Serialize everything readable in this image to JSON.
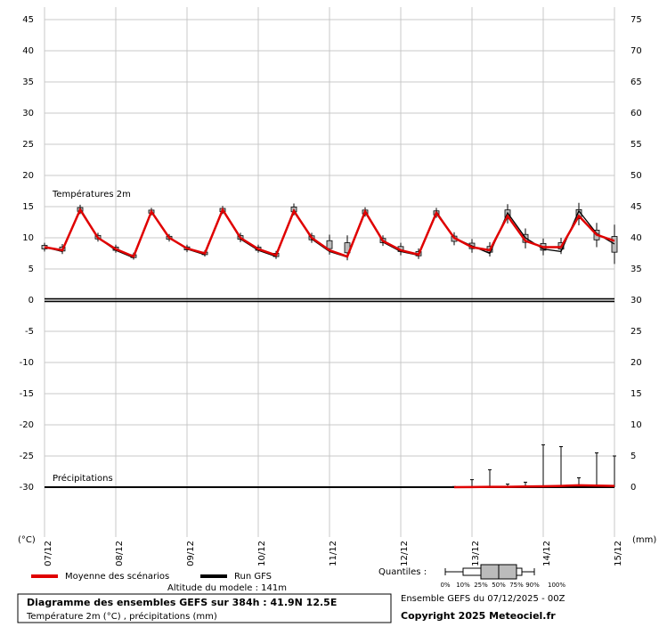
{
  "chart_data": {
    "type": "line",
    "title": "Diagramme des ensembles GEFS sur 384h : 41.9N 12.5E",
    "subtitle": "Température 2m (°C) , précipitations (mm)",
    "run_label": "Ensemble GEFS du 07/12/2025 - 00Z",
    "copyright": "Copyright 2025 Meteociel.fr",
    "altitude": "Altitude du modele : 141m",
    "ylabel": "(°C)",
    "y2label": "(mm)",
    "temperature_label": "Températures 2m",
    "x": [
      0,
      6,
      12,
      18,
      24,
      30,
      36,
      42,
      48,
      54,
      60,
      66,
      72,
      78,
      84,
      90,
      96,
      102,
      108,
      114,
      120,
      126,
      132,
      138,
      144,
      150,
      156,
      162,
      168,
      174,
      180,
      186,
      192
    ],
    "xlim": [
      0,
      192
    ],
    "xticks": [
      {
        "value": 0,
        "label": "07/12"
      },
      {
        "value": 24,
        "label": "08/12"
      },
      {
        "value": 48,
        "label": "09/12"
      },
      {
        "value": 72,
        "label": "10/12"
      },
      {
        "value": 96,
        "label": "11/12"
      },
      {
        "value": 120,
        "label": "12/12"
      },
      {
        "value": 144,
        "label": "13/12"
      },
      {
        "value": 168,
        "label": "14/12"
      },
      {
        "value": 192,
        "label": "15/12"
      }
    ],
    "ylim": [
      -38,
      47
    ],
    "yticks": [
      -30,
      -25,
      -20,
      -15,
      -10,
      -5,
      0,
      5,
      10,
      15,
      20,
      25,
      30,
      35,
      40,
      45
    ],
    "y2lim": [
      -8,
      77
    ],
    "y2ticks": [
      0,
      5,
      10,
      15,
      20,
      25,
      30,
      35,
      40,
      45,
      50,
      55,
      60,
      65,
      70,
      75
    ],
    "grid": true,
    "series": [
      {
        "name": "Moyenne des scénarios",
        "color": "#e00000",
        "values": [
          8.5,
          8,
          14.5,
          10,
          8.2,
          7,
          14.2,
          10,
          8.3,
          7.5,
          14.5,
          10,
          8.2,
          7.2,
          14.3,
          10,
          8,
          7,
          14.2,
          9.5,
          8,
          7.3,
          14,
          10,
          8.5,
          8,
          13.5,
          9.5,
          8.5,
          8.5,
          13.5,
          10.5,
          9.5
        ],
        "low": [
          7.8,
          7.4,
          13.8,
          9.4,
          7.6,
          6.5,
          13.6,
          9.4,
          7.7,
          7,
          13.8,
          9.3,
          7.6,
          6.6,
          13.6,
          9.2,
          7.3,
          6.4,
          13.4,
          8.7,
          7.2,
          6.6,
          13.2,
          8.8,
          7.6,
          7,
          12.3,
          8.3,
          7.2,
          7.4,
          12,
          8.5,
          5.8
        ],
        "high": [
          9.2,
          9,
          15.3,
          10.8,
          8.9,
          7.6,
          14.8,
          10.6,
          8.9,
          8,
          15.1,
          10.8,
          8.9,
          7.9,
          15.5,
          10.8,
          10.5,
          10.4,
          14.9,
          10.4,
          9.2,
          8.3,
          14.8,
          10.9,
          9.8,
          9.3,
          15.4,
          11.5,
          9.9,
          10,
          15.6,
          12.4,
          12.1
        ]
      },
      {
        "name": "Run GFS",
        "color": "#000000",
        "values": [
          8.5,
          7.8,
          14.7,
          10,
          8,
          6.8,
          14.3,
          10,
          8.2,
          7.3,
          14.6,
          9.8,
          8,
          7,
          14.5,
          9.8,
          7.8,
          6.9,
          14.4,
          9.3,
          7.8,
          7.2,
          14.2,
          10,
          8.7,
          7.5,
          14,
          10,
          8.2,
          7.8,
          14.3,
          10.7,
          9
        ]
      }
    ],
    "precipitation": {
      "label": "Précipitations",
      "axis": "y2",
      "mean": [
        null,
        null,
        null,
        null,
        null,
        null,
        null,
        null,
        null,
        null,
        null,
        null,
        null,
        null,
        null,
        null,
        null,
        null,
        null,
        null,
        null,
        null,
        null,
        0,
        0.02,
        0.05,
        0.05,
        0.1,
        0.15,
        0.2,
        0.3,
        0.25,
        0.2
      ],
      "max": [
        null,
        null,
        null,
        null,
        null,
        null,
        null,
        null,
        null,
        null,
        null,
        null,
        null,
        null,
        null,
        null,
        null,
        null,
        null,
        null,
        null,
        null,
        null,
        0.1,
        1.2,
        2.8,
        0.5,
        0.8,
        6.8,
        6.5,
        1.5,
        5.5,
        5
      ],
      "gfs": [
        0,
        0,
        0,
        0,
        0,
        0,
        0,
        0,
        0,
        0,
        0,
        0,
        0,
        0,
        0,
        0,
        0,
        0,
        0,
        0,
        0,
        0,
        0,
        0,
        0,
        0,
        0,
        0,
        0,
        0,
        0,
        0,
        0
      ]
    },
    "quantiles": {
      "label": "Quantiles :",
      "levels": [
        "0%",
        "10%",
        "25%",
        "50%",
        "75%",
        "90%",
        "100%"
      ]
    }
  }
}
